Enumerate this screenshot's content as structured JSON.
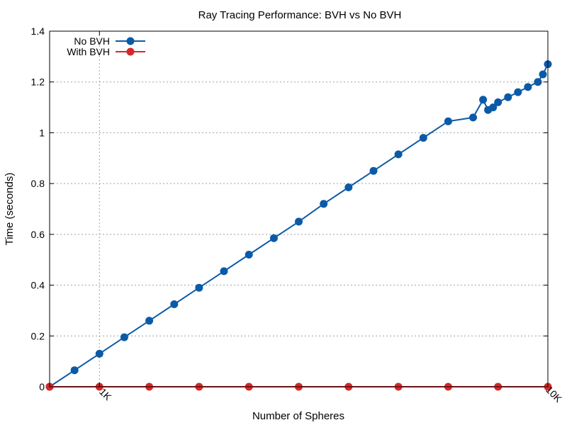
{
  "chart_data": {
    "type": "line",
    "title": "Ray Tracing Performance: BVH vs No BVH",
    "xlabel": "Number of Spheres",
    "ylabel": "Time (seconds)",
    "xlim": [
      0,
      10000
    ],
    "ylim": [
      0,
      1.4
    ],
    "x_ticks": [
      {
        "value": 1000,
        "label": "1K"
      },
      {
        "value": 10000,
        "label": "10K"
      }
    ],
    "y_ticks": [
      {
        "value": 0,
        "label": "0"
      },
      {
        "value": 0.2,
        "label": "0.2"
      },
      {
        "value": 0.4,
        "label": "0.4"
      },
      {
        "value": 0.6,
        "label": "0.6"
      },
      {
        "value": 0.8,
        "label": "0.8"
      },
      {
        "value": 1.0,
        "label": "1"
      },
      {
        "value": 1.2,
        "label": "1.2"
      },
      {
        "value": 1.4,
        "label": "1.4"
      }
    ],
    "grid": true,
    "legend_position": "top-left",
    "series": [
      {
        "name": "No BVH",
        "color": "#0b5aa8",
        "x": [
          0,
          500,
          1000,
          1500,
          2000,
          2500,
          3000,
          3500,
          4000,
          4500,
          5000,
          5500,
          6000,
          6500,
          7000,
          7500,
          8000,
          8500,
          8700,
          8800,
          8900,
          9000,
          9200,
          9400,
          9600,
          9800,
          9900,
          10000
        ],
        "values": [
          0.0,
          0.065,
          0.13,
          0.195,
          0.26,
          0.325,
          0.39,
          0.455,
          0.52,
          0.585,
          0.65,
          0.72,
          0.785,
          0.85,
          0.915,
          0.98,
          1.045,
          1.06,
          1.13,
          1.09,
          1.1,
          1.12,
          1.14,
          1.16,
          1.18,
          1.2,
          1.23,
          1.27
        ]
      },
      {
        "name": "With BVH",
        "color": "#d62728",
        "x": [
          0,
          1000,
          2000,
          3000,
          4000,
          5000,
          6000,
          7000,
          8000,
          9000,
          10000
        ],
        "values": [
          0,
          0,
          0,
          0,
          0,
          0,
          0,
          0,
          0,
          0,
          0
        ]
      }
    ]
  }
}
